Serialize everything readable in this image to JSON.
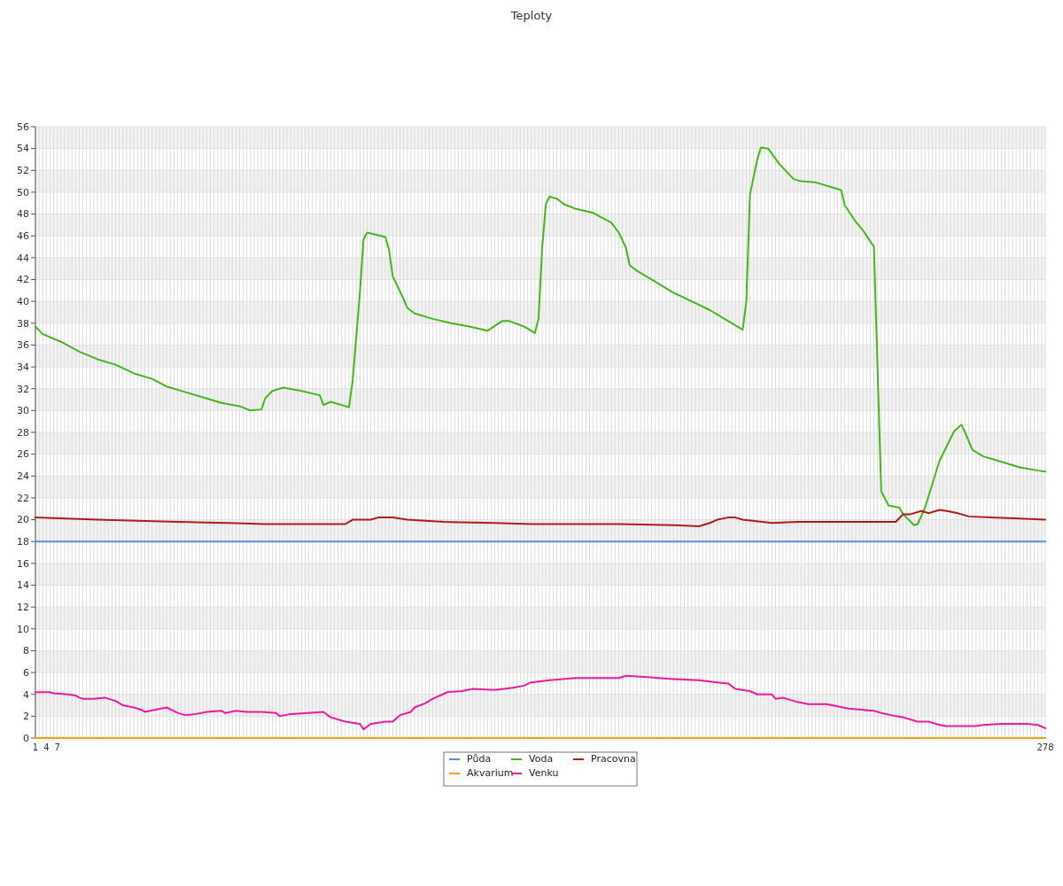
{
  "chart_data": {
    "type": "line",
    "title": "Teploty",
    "xlim": [
      1,
      278
    ],
    "ylim": [
      0,
      56
    ],
    "yticks": [
      0,
      2,
      4,
      6,
      8,
      10,
      12,
      14,
      16,
      18,
      20,
      22,
      24,
      26,
      28,
      30,
      32,
      34,
      36,
      38,
      40,
      42,
      44,
      46,
      48,
      50,
      52,
      54,
      56
    ],
    "xticks": [
      1,
      {
        "value": 2,
        "label": null
      },
      {
        "value": 3,
        "label": null
      },
      4,
      {
        "value": 5,
        "label": null
      },
      {
        "value": 6,
        "label": null
      },
      7,
      {
        "value": 8,
        "label": null
      },
      {
        "value": 9,
        "label": null
      },
      {
        "value": 10,
        "label": null
      },
      {
        "value": 11,
        "label": null
      },
      {
        "value": 12,
        "label": null
      },
      {
        "value": 13,
        "label": null
      },
      {
        "value": 14,
        "label": null
      },
      {
        "value": 15,
        "label": null
      },
      {
        "value": 16,
        "label": null
      },
      {
        "value": 17,
        "label": null
      },
      {
        "value": 18,
        "label": null
      },
      {
        "value": 19,
        "label": null
      },
      {
        "value": 20,
        "label": null
      },
      {
        "value": 21,
        "label": null
      },
      {
        "value": 22,
        "label": null
      },
      {
        "value": 23,
        "label": null
      },
      {
        "value": 24,
        "label": null
      },
      {
        "value": 25,
        "label": null
      },
      {
        "value": 26,
        "label": null
      },
      {
        "value": 27,
        "label": null
      },
      {
        "value": 28,
        "label": null
      },
      {
        "value": 29,
        "label": null
      },
      {
        "value": 30,
        "label": null
      },
      {
        "value": 31,
        "label": null
      },
      {
        "value": 32,
        "label": null
      },
      {
        "value": 33,
        "label": null
      },
      {
        "value": 34,
        "label": null
      },
      {
        "value": 35,
        "label": null
      },
      {
        "value": 36,
        "label": null
      },
      {
        "value": 37,
        "label": null
      },
      {
        "value": 38,
        "label": null
      },
      {
        "value": 39,
        "label": null
      },
      {
        "value": 40,
        "label": null
      },
      {
        "value": 41,
        "label": null
      },
      {
        "value": 42,
        "label": null
      },
      {
        "value": 43,
        "label": null
      },
      {
        "value": 44,
        "label": null
      },
      {
        "value": 45,
        "label": null
      },
      {
        "value": 46,
        "label": null
      },
      {
        "value": 47,
        "label": null
      },
      {
        "value": 48,
        "label": null
      },
      {
        "value": 49,
        "label": null
      },
      {
        "value": 50,
        "label": null
      },
      {
        "value": 51,
        "label": null
      },
      {
        "value": 52,
        "label": null
      },
      {
        "value": 53,
        "label": null
      },
      {
        "value": 54,
        "label": null
      },
      {
        "value": 55,
        "label": null
      },
      {
        "value": 56,
        "label": null
      },
      {
        "value": 57,
        "label": null
      },
      {
        "value": 58,
        "label": null
      },
      {
        "value": 59,
        "label": null
      },
      {
        "value": 60,
        "label": null
      },
      {
        "value": 61,
        "label": null
      },
      {
        "value": 62,
        "label": null
      },
      {
        "value": 63,
        "label": null
      },
      {
        "value": 64,
        "label": null
      },
      {
        "value": 65,
        "label": null
      },
      {
        "value": 66,
        "label": null
      },
      {
        "value": 67,
        "label": null
      },
      {
        "value": 68,
        "label": null
      },
      {
        "value": 69,
        "label": null
      },
      {
        "value": 70,
        "label": null
      },
      {
        "value": 71,
        "label": null
      },
      {
        "value": 72,
        "label": null
      },
      {
        "value": 73,
        "label": null
      },
      {
        "value": 74,
        "label": null
      },
      {
        "value": 75,
        "label": null
      },
      {
        "value": 76,
        "label": null
      },
      {
        "value": 77,
        "label": null
      },
      {
        "value": 78,
        "label": null
      },
      {
        "value": 79,
        "label": null
      },
      {
        "value": 80,
        "label": null
      },
      {
        "value": 81,
        "label": null
      },
      {
        "value": 82,
        "label": null
      },
      {
        "value": 83,
        "label": null
      },
      {
        "value": 84,
        "label": null
      },
      {
        "value": 85,
        "label": null
      },
      {
        "value": 86,
        "label": null
      },
      {
        "value": 87,
        "label": null
      },
      {
        "value": 88,
        "label": null
      },
      {
        "value": 89,
        "label": null
      },
      {
        "value": 90,
        "label": null
      },
      {
        "value": 91,
        "label": null
      },
      {
        "value": 92,
        "label": null
      },
      {
        "value": 93,
        "label": null
      },
      {
        "value": 94,
        "label": null
      },
      {
        "value": 95,
        "label": null
      },
      {
        "value": 96,
        "label": null
      },
      {
        "value": 97,
        "label": null
      },
      {
        "value": 98,
        "label": null
      },
      {
        "value": 99,
        "label": null
      },
      {
        "value": 100,
        "label": null
      },
      {
        "value": 101,
        "label": null
      },
      {
        "value": 102,
        "label": null
      },
      {
        "value": 103,
        "label": null
      },
      {
        "value": 104,
        "label": null
      },
      {
        "value": 105,
        "label": null
      },
      {
        "value": 106,
        "label": null
      },
      {
        "value": 107,
        "label": null
      },
      {
        "value": 108,
        "label": null
      },
      {
        "value": 109,
        "label": null
      },
      {
        "value": 110,
        "label": null
      },
      {
        "value": 111,
        "label": null
      },
      {
        "value": 112,
        "label": null
      },
      {
        "value": 113,
        "label": null
      },
      {
        "value": 114,
        "label": null
      },
      {
        "value": 115,
        "label": null
      },
      {
        "value": 116,
        "label": null
      },
      {
        "value": 117,
        "label": null
      },
      {
        "value": 118,
        "label": null
      },
      {
        "value": 119,
        "label": null
      },
      {
        "value": 120,
        "label": null
      },
      {
        "value": 121,
        "label": null
      },
      {
        "value": 122,
        "label": null
      },
      {
        "value": 123,
        "label": null
      },
      {
        "value": 124,
        "label": null
      },
      {
        "value": 125,
        "label": null
      },
      {
        "value": 126,
        "label": null
      },
      {
        "value": 127,
        "label": null
      },
      {
        "value": 128,
        "label": null
      },
      {
        "value": 129,
        "label": null
      },
      {
        "value": 130,
        "label": null
      },
      {
        "value": 131,
        "label": null
      },
      {
        "value": 132,
        "label": null
      },
      {
        "value": 133,
        "label": null
      },
      {
        "value": 134,
        "label": null
      },
      {
        "value": 135,
        "label": null
      },
      {
        "value": 136,
        "label": null
      },
      {
        "value": 137,
        "label": null
      },
      {
        "value": 138,
        "label": null
      },
      {
        "value": 139,
        "label": null
      },
      {
        "value": 140,
        "label": null
      },
      {
        "value": 141,
        "label": null
      },
      {
        "value": 142,
        "label": null
      },
      {
        "value": 143,
        "label": null
      },
      {
        "value": 144,
        "label": null
      },
      {
        "value": 145,
        "label": null
      },
      {
        "value": 146,
        "label": null
      },
      {
        "value": 147,
        "label": null
      },
      {
        "value": 148,
        "label": null
      },
      {
        "value": 149,
        "label": null
      },
      {
        "value": 150,
        "label": null
      },
      {
        "value": 151,
        "label": null
      },
      {
        "value": 152,
        "label": null
      },
      {
        "value": 153,
        "label": null
      },
      {
        "value": 154,
        "label": null
      },
      {
        "value": 155,
        "label": null
      },
      {
        "value": 156,
        "label": null
      },
      {
        "value": 157,
        "label": null
      },
      {
        "value": 158,
        "label": null
      },
      {
        "value": 159,
        "label": null
      },
      {
        "value": 160,
        "label": null
      },
      {
        "value": 161,
        "label": null
      },
      {
        "value": 162,
        "label": null
      },
      {
        "value": 163,
        "label": null
      },
      {
        "value": 164,
        "label": null
      },
      {
        "value": 165,
        "label": null
      },
      {
        "value": 166,
        "label": null
      },
      {
        "value": 167,
        "label": null
      },
      {
        "value": 168,
        "label": null
      },
      {
        "value": 169,
        "label": null
      },
      {
        "value": 170,
        "label": null
      },
      {
        "value": 171,
        "label": null
      },
      {
        "value": 172,
        "label": null
      },
      {
        "value": 173,
        "label": null
      },
      {
        "value": 174,
        "label": null
      },
      {
        "value": 175,
        "label": null
      },
      {
        "value": 176,
        "label": null
      },
      {
        "value": 177,
        "label": null
      },
      {
        "value": 178,
        "label": null
      },
      {
        "value": 179,
        "label": null
      },
      {
        "value": 180,
        "label": null
      },
      {
        "value": 181,
        "label": null
      },
      {
        "value": 182,
        "label": null
      },
      {
        "value": 183,
        "label": null
      },
      {
        "value": 184,
        "label": null
      },
      {
        "value": 185,
        "label": null
      },
      {
        "value": 186,
        "label": null
      },
      {
        "value": 187,
        "label": null
      },
      {
        "value": 188,
        "label": null
      },
      {
        "value": 189,
        "label": null
      },
      {
        "value": 190,
        "label": null
      },
      {
        "value": 191,
        "label": null
      },
      {
        "value": 192,
        "label": null
      },
      {
        "value": 193,
        "label": null
      },
      {
        "value": 194,
        "label": null
      },
      {
        "value": 195,
        "label": null
      },
      {
        "value": 196,
        "label": null
      },
      {
        "value": 197,
        "label": null
      },
      {
        "value": 198,
        "label": null
      },
      {
        "value": 199,
        "label": null
      },
      {
        "value": 200,
        "label": null
      },
      {
        "value": 201,
        "label": null
      },
      {
        "value": 202,
        "label": null
      },
      {
        "value": 203,
        "label": null
      },
      {
        "value": 204,
        "label": null
      },
      {
        "value": 205,
        "label": null
      },
      {
        "value": 206,
        "label": null
      },
      {
        "value": 207,
        "label": null
      },
      {
        "value": 208,
        "label": null
      },
      {
        "value": 209,
        "label": null
      },
      {
        "value": 210,
        "label": null
      },
      {
        "value": 211,
        "label": null
      },
      {
        "value": 212,
        "label": null
      },
      {
        "value": 213,
        "label": null
      },
      {
        "value": 214,
        "label": null
      },
      {
        "value": 215,
        "label": null
      },
      {
        "value": 216,
        "label": null
      },
      {
        "value": 217,
        "label": null
      },
      {
        "value": 218,
        "label": null
      },
      {
        "value": 219,
        "label": null
      },
      {
        "value": 220,
        "label": null
      },
      {
        "value": 221,
        "label": null
      },
      {
        "value": 222,
        "label": null
      },
      {
        "value": 223,
        "label": null
      },
      {
        "value": 224,
        "label": null
      },
      {
        "value": 225,
        "label": null
      },
      {
        "value": 226,
        "label": null
      },
      {
        "value": 227,
        "label": null
      },
      {
        "value": 228,
        "label": null
      },
      {
        "value": 229,
        "label": null
      },
      {
        "value": 230,
        "label": null
      },
      {
        "value": 231,
        "label": null
      },
      {
        "value": 232,
        "label": null
      },
      {
        "value": 233,
        "label": null
      },
      {
        "value": 234,
        "label": null
      },
      {
        "value": 235,
        "label": null
      },
      {
        "value": 236,
        "label": null
      },
      {
        "value": 237,
        "label": null
      },
      {
        "value": 238,
        "label": null
      },
      {
        "value": 239,
        "label": null
      },
      {
        "value": 240,
        "label": null
      },
      {
        "value": 241,
        "label": null
      },
      {
        "value": 242,
        "label": null
      },
      {
        "value": 243,
        "label": null
      },
      {
        "value": 244,
        "label": null
      },
      {
        "value": 245,
        "label": null
      },
      {
        "value": 246,
        "label": null
      },
      {
        "value": 247,
        "label": null
      },
      {
        "value": 248,
        "label": null
      },
      {
        "value": 249,
        "label": null
      },
      {
        "value": 250,
        "label": null
      },
      {
        "value": 251,
        "label": null
      },
      {
        "value": 252,
        "label": null
      },
      {
        "value": 253,
        "label": null
      },
      {
        "value": 254,
        "label": null
      },
      {
        "value": 255,
        "label": null
      },
      {
        "value": 256,
        "label": null
      },
      {
        "value": 257,
        "label": null
      },
      {
        "value": 258,
        "label": null
      },
      {
        "value": 259,
        "label": null
      },
      {
        "value": 260,
        "label": null
      },
      {
        "value": 261,
        "label": null
      },
      {
        "value": 262,
        "label": null
      },
      {
        "value": 263,
        "label": null
      },
      {
        "value": 264,
        "label": null
      },
      {
        "value": 265,
        "label": null
      },
      {
        "value": 266,
        "label": null
      },
      {
        "value": 267,
        "label": null
      },
      {
        "value": 268,
        "label": null
      },
      {
        "value": 269,
        "label": null
      },
      {
        "value": 270,
        "label": null
      },
      {
        "value": 271,
        "label": null
      },
      {
        "value": 272,
        "label": null
      },
      {
        "value": 273,
        "label": null
      },
      {
        "value": 274,
        "label": null
      },
      {
        "value": 275,
        "label": null
      },
      {
        "value": 276,
        "label": null
      },
      {
        "value": 277,
        "label": null
      },
      278
    ],
    "grid": true,
    "legend": "bottom",
    "marker": "none",
    "line_style": "solid",
    "series": [
      {
        "name": "Půda",
        "color": "#4f8fe6",
        "x": [
          1,
          278
        ],
        "values": [
          18,
          18
        ]
      },
      {
        "name": "Voda",
        "color": "#44b81a",
        "x": [
          1,
          3,
          8,
          13,
          18,
          23,
          28,
          33,
          37,
          42,
          47,
          52,
          57,
          60,
          63,
          64,
          66,
          69,
          74,
          79,
          80,
          82,
          87,
          88,
          90,
          91,
          92,
          97,
          98,
          99,
          102,
          103,
          105,
          110,
          115,
          120,
          124,
          125,
          129,
          131,
          135,
          138,
          139,
          140,
          141,
          142,
          144,
          146,
          149,
          154,
          159,
          161,
          163,
          164,
          166,
          171,
          176,
          181,
          186,
          190,
          194,
          195,
          196,
          197,
          199,
          200,
          202,
          205,
          209,
          211,
          215,
          220,
          222,
          223,
          226,
          228,
          230,
          231,
          233,
          235,
          238,
          239,
          242,
          243,
          245,
          249,
          253,
          255,
          256,
          258,
          261,
          265,
          271,
          276,
          278
        ],
        "values": [
          37.7,
          37.0,
          36.3,
          35.4,
          34.7,
          34.2,
          33.4,
          32.9,
          32.2,
          31.7,
          31.2,
          30.7,
          30.4,
          30.0,
          30.1,
          31.1,
          31.8,
          32.1,
          31.8,
          31.4,
          30.5,
          30.8,
          30.3,
          32.7,
          40.8,
          45.7,
          46.3,
          45.9,
          44.7,
          42.3,
          40.2,
          39.4,
          38.9,
          38.4,
          38.0,
          37.7,
          37.4,
          37.3,
          38.2,
          38.2,
          37.7,
          37.1,
          38.4,
          44.9,
          48.9,
          49.6,
          49.4,
          48.9,
          48.5,
          48.1,
          47.2,
          46.3,
          44.9,
          43.3,
          42.8,
          41.8,
          40.8,
          40.0,
          39.2,
          38.4,
          37.6,
          37.4,
          40.0,
          49.8,
          53.0,
          54.1,
          54.0,
          52.6,
          51.2,
          51.0,
          50.9,
          50.4,
          50.2,
          48.8,
          47.3,
          46.5,
          45.5,
          45.0,
          22.6,
          21.3,
          21.1,
          20.5,
          19.5,
          19.6,
          21.1,
          25.4,
          28.1,
          28.7,
          28.0,
          26.4,
          25.8,
          25.4,
          24.8,
          24.5,
          24.4
        ]
      },
      {
        "name": "Pracovna",
        "color": "#b01c1c",
        "x": [
          1,
          18,
          40,
          54,
          64,
          86,
          88,
          93,
          95,
          99,
          103,
          113,
          127,
          137,
          161,
          176,
          183,
          186,
          188,
          191,
          193,
          195,
          203,
          210,
          232,
          237,
          239,
          241,
          244,
          246,
          249,
          251,
          254,
          257,
          263,
          271,
          278
        ],
        "values": [
          20.2,
          20.0,
          19.8,
          19.7,
          19.6,
          19.6,
          20.0,
          20.0,
          20.2,
          20.2,
          20.0,
          19.8,
          19.7,
          19.6,
          19.6,
          19.5,
          19.4,
          19.7,
          20.0,
          20.2,
          20.2,
          20.0,
          19.7,
          19.8,
          19.8,
          19.8,
          20.5,
          20.5,
          20.8,
          20.6,
          20.9,
          20.8,
          20.6,
          20.3,
          20.2,
          20.1,
          20.0
        ]
      },
      {
        "name": "Akvarium",
        "color": "#f5a000",
        "x": [
          1,
          278
        ],
        "values": [
          0,
          0
        ]
      },
      {
        "name": "Venku",
        "color": "#f0199b",
        "x": [
          1,
          5,
          6,
          10,
          12,
          13,
          14,
          17,
          20,
          23,
          24,
          25,
          28,
          30,
          31,
          34,
          37,
          40,
          42,
          45,
          48,
          52,
          53,
          56,
          59,
          63,
          67,
          68,
          71,
          80,
          82,
          86,
          88,
          90,
          91,
          93,
          97,
          99,
          101,
          104,
          105,
          108,
          110,
          114,
          118,
          121,
          127,
          132,
          135,
          137,
          142,
          149,
          161,
          163,
          168,
          176,
          183,
          188,
          191,
          193,
          197,
          199,
          203,
          204,
          206,
          210,
          213,
          218,
          221,
          224,
          231,
          233,
          237,
          239,
          243,
          246,
          249,
          251,
          256,
          259,
          261,
          266,
          273,
          276,
          278
        ],
        "values": [
          4.2,
          4.2,
          4.1,
          4.0,
          3.9,
          3.7,
          3.6,
          3.6,
          3.7,
          3.4,
          3.2,
          3.0,
          2.8,
          2.6,
          2.4,
          2.6,
          2.8,
          2.3,
          2.1,
          2.2,
          2.4,
          2.5,
          2.3,
          2.5,
          2.4,
          2.4,
          2.3,
          2.0,
          2.2,
          2.4,
          1.9,
          1.5,
          1.4,
          1.3,
          0.8,
          1.3,
          1.5,
          1.5,
          2.1,
          2.4,
          2.8,
          3.2,
          3.6,
          4.2,
          4.3,
          4.5,
          4.4,
          4.6,
          4.8,
          5.1,
          5.3,
          5.5,
          5.5,
          5.7,
          5.6,
          5.4,
          5.3,
          5.1,
          5.0,
          4.5,
          4.3,
          4.0,
          4.0,
          3.6,
          3.7,
          3.3,
          3.1,
          3.1,
          2.9,
          2.7,
          2.5,
          2.3,
          2.0,
          1.9,
          1.5,
          1.5,
          1.2,
          1.1,
          1.1,
          1.1,
          1.2,
          1.3,
          1.3,
          1.2,
          0.9
        ]
      }
    ]
  }
}
